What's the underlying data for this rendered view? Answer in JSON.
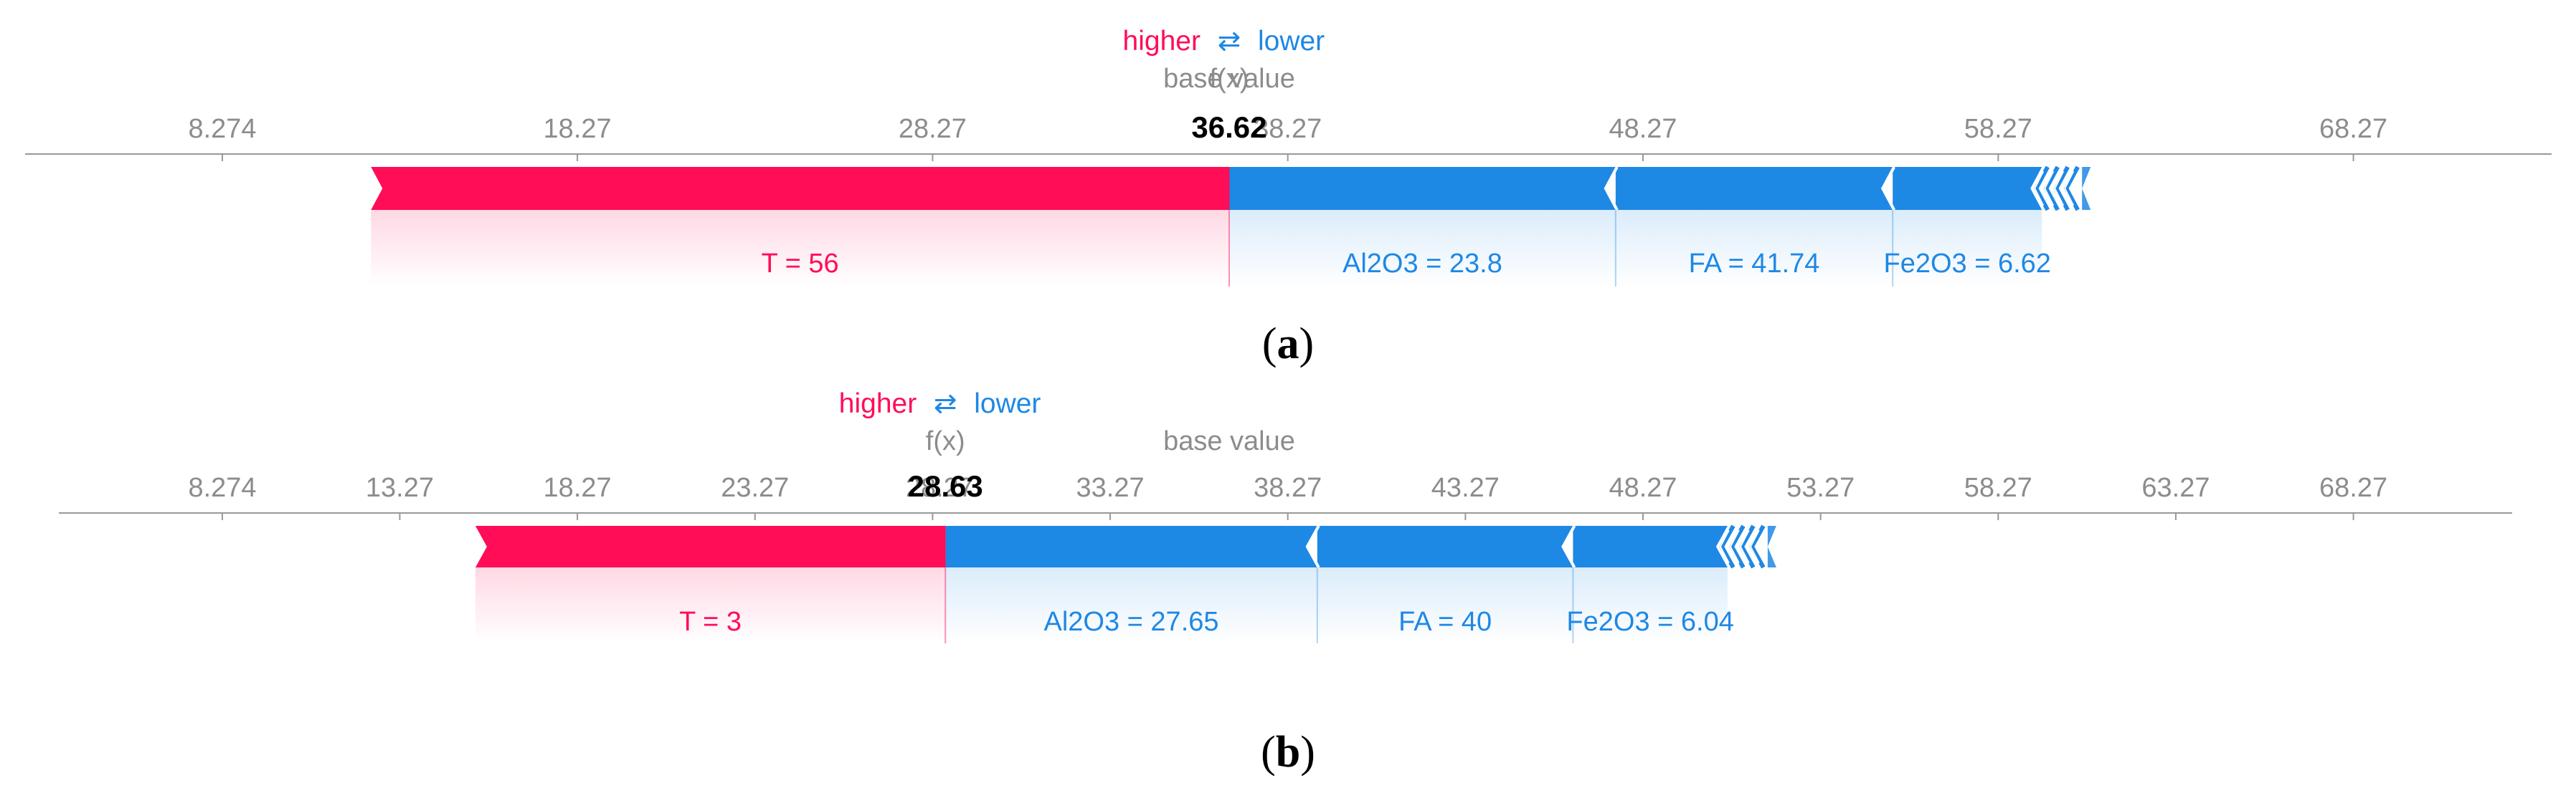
{
  "colors": {
    "higher": "#ff0d57",
    "lower": "#1e88e5",
    "axis": "#999999",
    "tick_text": "#8c8c8c"
  },
  "legend": {
    "higher": "higher",
    "arrow": "⇄",
    "lower": "lower"
  },
  "labels": {
    "fx": "f(x)",
    "base_value": "base value"
  },
  "chart_data": [
    {
      "type": "force",
      "caption_letter": "a",
      "base_value": 36.62,
      "output_value": 36.62,
      "output_label": "36.62",
      "ticks": [
        8.274,
        18.27,
        28.27,
        38.27,
        48.27,
        58.27,
        68.27
      ],
      "tick_labels": [
        "8.274",
        "18.27",
        "28.27",
        "38.27",
        "48.27",
        "58.27",
        "68.27"
      ],
      "xlim": [
        7.0,
        70.0
      ],
      "positive_features": [
        {
          "label": "T = 56",
          "from": 12.46,
          "to": 36.62
        }
      ],
      "negative_features": [
        {
          "label": "Al2O3 = 23.8",
          "from": 36.62,
          "to": 47.5
        },
        {
          "label": "FA = 41.74",
          "from": 47.5,
          "to": 55.3
        },
        {
          "label": "Fe2O3 = 6.62",
          "from": 55.3,
          "to": 59.5
        }
      ]
    },
    {
      "type": "force",
      "caption_letter": "b",
      "base_value": 36.62,
      "output_value": 28.63,
      "output_label": "28.63",
      "ticks": [
        8.274,
        13.27,
        18.27,
        23.27,
        28.27,
        33.27,
        38.27,
        43.27,
        48.27,
        53.27,
        58.27,
        63.27,
        68.27
      ],
      "tick_labels": [
        "8.274",
        "13.27",
        "18.27",
        "23.27",
        "28.27",
        "33.27",
        "38.27",
        "43.27",
        "48.27",
        "53.27",
        "58.27",
        "63.27",
        "68.27"
      ],
      "xlim": [
        7.0,
        70.0
      ],
      "positive_features": [
        {
          "label": "T = 3",
          "from": 15.4,
          "to": 28.63
        }
      ],
      "negative_features": [
        {
          "label": "Al2O3 = 27.65",
          "from": 28.63,
          "to": 39.1
        },
        {
          "label": "FA = 40",
          "from": 39.1,
          "to": 46.3
        },
        {
          "label": "Fe2O3 = 6.04",
          "from": 46.3,
          "to": 50.65
        }
      ]
    }
  ]
}
